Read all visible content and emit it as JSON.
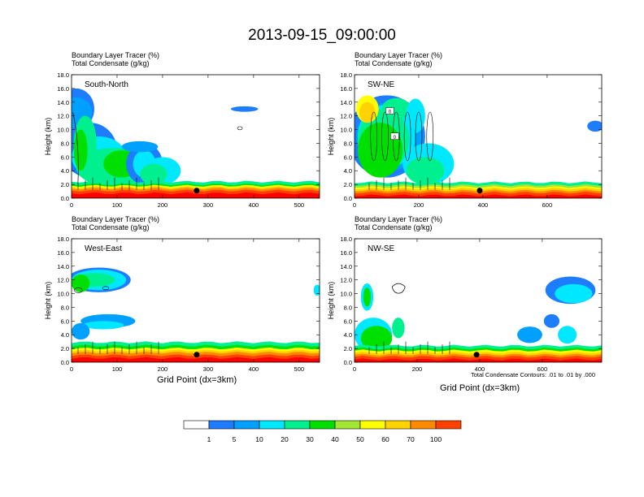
{
  "title": "2013-09-15_09:00:00",
  "header_line1": "Boundary Layer Tracer   (%)",
  "header_line2": "Total Condensate   (g/kg)",
  "ylabel": "Height (km)",
  "xlabel": "Grid Point (dx=3km)",
  "contour_note": "Total Condensate Contours: .01 to .01 by .000",
  "colors": {
    "c0": "#ffffff",
    "c1": "#1e7cff",
    "c5": "#00a0ff",
    "c10": "#00e8ff",
    "c20": "#00f090",
    "c30": "#00e000",
    "c40": "#a0e632",
    "c50": "#ffff00",
    "c60": "#ffd200",
    "c70": "#ff8a00",
    "c80": "#ff4000",
    "c100": "#ff0000"
  },
  "colorbar": {
    "labels": [
      "1",
      "5",
      "10",
      "20",
      "30",
      "40",
      "50",
      "60",
      "70",
      "100"
    ]
  },
  "chart_data": [
    {
      "type": "heatmap",
      "panel_label": "South-North",
      "xlim": [
        0,
        545
      ],
      "ylim": [
        0,
        18
      ],
      "xticks": [
        "0",
        "100",
        "200",
        "300",
        "400",
        "500"
      ],
      "yticks": [
        "0.0",
        "2.0",
        "4.0",
        "6.0",
        "8.0",
        "10.0",
        "12.0",
        "14.0",
        "16.0",
        "18.0"
      ],
      "marker": {
        "x": 275,
        "y": 1.1
      },
      "contour_x": [
        [
          3,
          3.5,
          6,
          7.5,
          8.5,
          10.5,
          12
        ],
        [
          18,
          24,
          28,
          34,
          37
        ]
      ]
    },
    {
      "type": "heatmap",
      "panel_label": "SW-NE",
      "xlim": [
        0,
        770
      ],
      "ylim": [
        0,
        18
      ],
      "xticks": [
        "0",
        "200",
        "400",
        "600"
      ],
      "yticks": [
        "0.0",
        "2.0",
        "4.0",
        "6.0",
        "8.0",
        "10.0",
        "12.0",
        "14.0",
        "16.0",
        "18.0"
      ],
      "marker": {
        "x": 390,
        "y": 1.1
      },
      "contour_labels": [
        "0",
        "0"
      ]
    },
    {
      "type": "heatmap",
      "panel_label": "West-East",
      "xlim": [
        0,
        545
      ],
      "ylim": [
        0,
        18
      ],
      "xticks": [
        "0",
        "100",
        "200",
        "300",
        "400",
        "500"
      ],
      "yticks": [
        "0.0",
        "2.0",
        "4.0",
        "6.0",
        "8.0",
        "10.0",
        "12.0",
        "14.0",
        "16.0",
        "18.0"
      ],
      "marker": {
        "x": 275,
        "y": 1.1
      }
    },
    {
      "type": "heatmap",
      "panel_label": "NW-SE",
      "xlim": [
        0,
        790
      ],
      "ylim": [
        0,
        18
      ],
      "xticks": [
        "0",
        "200",
        "400",
        "600"
      ],
      "yticks": [
        "0.0",
        "2.0",
        "4.0",
        "6.0",
        "8.0",
        "10.0",
        "12.0",
        "14.0",
        "16.0",
        "18.0"
      ],
      "marker": {
        "x": 390,
        "y": 1.1
      }
    }
  ]
}
